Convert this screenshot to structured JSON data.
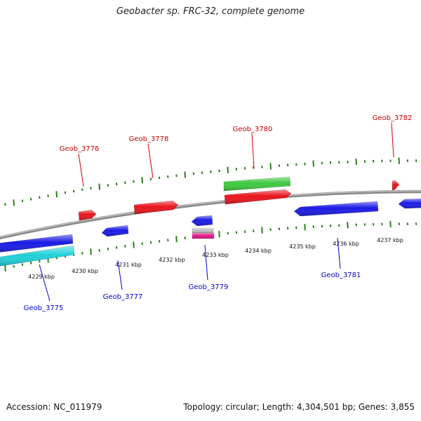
{
  "title": "Geobacter sp. FRC-32, complete genome",
  "footer": {
    "accession": "Accession: NC_011979",
    "summary": "Topology: circular; Length: 4,304,501 bp; Genes: 3,855"
  },
  "colors": {
    "backbone": "#8a8a8a",
    "ticks": "#2e7d1f",
    "forward_label": "#cc0000",
    "reverse_label": "#0000cc",
    "red": "#e8141c",
    "blue": "#1a1ae6",
    "green": "#3ec93e",
    "cyan": "#1fd0d8",
    "gray": "#bdbdbd",
    "magenta": "#e6188c"
  },
  "scale_labels": [
    {
      "kbp": 4229,
      "text": "4229 kbp"
    },
    {
      "kbp": 4230,
      "text": "4230 kbp"
    },
    {
      "kbp": 4231,
      "text": "4231 kbp"
    },
    {
      "kbp": 4232,
      "text": "4232 kbp"
    },
    {
      "kbp": 4233,
      "text": "4233 kbp"
    },
    {
      "kbp": 4234,
      "text": "4234 kbp"
    },
    {
      "kbp": 4235,
      "text": "4235 kbp"
    },
    {
      "kbp": 4236,
      "text": "4236 kbp"
    },
    {
      "kbp": 4237,
      "text": "4237 kbp"
    }
  ],
  "labels": [
    {
      "name": "Geob_3775",
      "strand": "reverse"
    },
    {
      "name": "Geob_3776",
      "strand": "forward"
    },
    {
      "name": "Geob_3777",
      "strand": "reverse"
    },
    {
      "name": "Geob_3778",
      "strand": "forward"
    },
    {
      "name": "Geob_3779",
      "strand": "reverse"
    },
    {
      "name": "Geob_3780",
      "strand": "forward"
    },
    {
      "name": "Geob_3781",
      "strand": "reverse"
    },
    {
      "name": "Geob_3782",
      "strand": "forward"
    }
  ],
  "features": [
    {
      "color": "blue",
      "strand": "reverse"
    },
    {
      "color": "cyan",
      "strand": "reverse"
    },
    {
      "color": "red",
      "strand": "forward"
    },
    {
      "color": "blue",
      "strand": "reverse"
    },
    {
      "color": "red",
      "strand": "forward"
    },
    {
      "color": "blue",
      "strand": "reverse"
    },
    {
      "color": "gray",
      "strand": "reverse"
    },
    {
      "color": "magenta",
      "strand": "reverse"
    },
    {
      "color": "green",
      "strand": "forward"
    },
    {
      "color": "red",
      "strand": "forward"
    },
    {
      "color": "blue",
      "strand": "reverse"
    },
    {
      "color": "red",
      "strand": "forward"
    },
    {
      "color": "blue",
      "strand": "reverse"
    }
  ]
}
